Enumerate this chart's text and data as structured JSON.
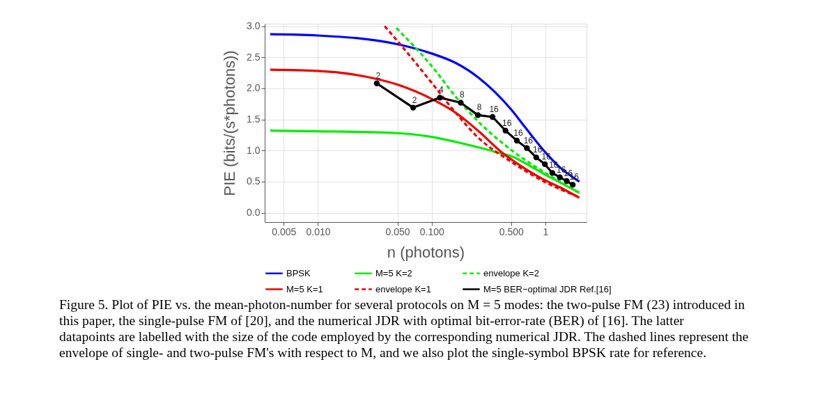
{
  "chart_data": {
    "type": "line",
    "xlabel": "n (photons)",
    "ylabel": "PIE (bits/(s*photons))",
    "log": "x",
    "xlim": [
      0.0034,
      2.3
    ],
    "ylim": [
      -0.15,
      3.04
    ],
    "xticks": [
      {
        "value": 0.005,
        "label": "0.005"
      },
      {
        "value": 0.01,
        "label": "0.010"
      },
      {
        "value": 0.05,
        "label": "0.050"
      },
      {
        "value": 0.1,
        "label": "0.100"
      },
      {
        "value": 0.5,
        "label": "0.500"
      },
      1
    ],
    "yticks": [
      {
        "value": 0,
        "label": "0.0"
      },
      {
        "value": 0.5,
        "label": "0.5"
      },
      {
        "value": 1,
        "label": "1.0"
      },
      {
        "value": 1.5,
        "label": "1.5"
      },
      {
        "value": 2,
        "label": "2.0"
      },
      {
        "value": 2.5,
        "label": "2.5"
      },
      {
        "value": 3,
        "label": "3.0"
      }
    ],
    "grid": true,
    "legend": "bottom",
    "series": [
      {
        "name": "BPSK",
        "color": "#0000ff",
        "line_style": "solid",
        "x": [
          0.0038,
          0.01,
          0.05,
          0.1,
          0.162,
          0.259,
          0.5,
          0.66,
          1,
          1.34,
          1.99
        ],
        "values": [
          2.87,
          2.85,
          2.71,
          2.56,
          2.41,
          2.17,
          1.66,
          1.38,
          0.97,
          0.73,
          0.5
        ]
      },
      {
        "name": "M=5 K=2",
        "color": "#00ee00",
        "line_style": "solid",
        "x": [
          0.0038,
          0.01,
          0.05,
          0.1,
          0.162,
          0.259,
          0.414,
          0.5,
          0.66,
          1,
          1.34,
          1.99
        ],
        "values": [
          1.32,
          1.31,
          1.28,
          1.22,
          1.14,
          1.05,
          0.95,
          0.91,
          0.8,
          0.61,
          0.49,
          0.32
        ]
      },
      {
        "name": "envelope K=2",
        "color": "#00ee00",
        "line_style": "dashed",
        "x": [
          0.0489,
          0.1,
          0.162,
          0.259,
          0.5,
          1,
          1.99
        ],
        "values": [
          2.97,
          2.36,
          1.87,
          1.46,
          1.01,
          0.64,
          0.32
        ]
      },
      {
        "name": "M=5 K=1",
        "color": "#ee0000",
        "line_style": "solid",
        "x": [
          0.0038,
          0.01,
          0.033,
          0.05,
          0.1,
          0.162,
          0.259,
          0.414,
          0.5,
          0.66,
          1,
          1.34,
          1.99
        ],
        "values": [
          2.3,
          2.28,
          2.15,
          2.06,
          1.83,
          1.61,
          1.31,
          0.97,
          0.86,
          0.71,
          0.52,
          0.41,
          0.24
        ]
      },
      {
        "name": "envelope K=1",
        "color": "#ee0000",
        "line_style": "dashed",
        "x": [
          0.0386,
          0.054,
          0.1,
          0.162,
          0.259,
          0.5,
          1,
          1.99
        ],
        "values": [
          3.0,
          2.69,
          2.09,
          1.61,
          1.2,
          0.82,
          0.49,
          0.25
        ]
      },
      {
        "name": "M=5 BER−optimal JDR Ref.[16]",
        "color": "#000000",
        "line_style": "solid",
        "marker": "circle",
        "x": [
          0.0329,
          0.0687,
          0.118,
          0.18,
          0.255,
          0.343,
          0.446,
          0.561,
          0.687,
          0.83,
          0.99,
          1.15,
          1.34,
          1.54,
          1.74
        ],
        "values": [
          2.08,
          1.69,
          1.85,
          1.77,
          1.57,
          1.54,
          1.32,
          1.16,
          1.04,
          0.89,
          0.78,
          0.64,
          0.57,
          0.51,
          0.45
        ]
      }
    ],
    "annotations": [
      {
        "text": "2",
        "x": 0.0329,
        "y": 2.08
      },
      {
        "text": "2",
        "x": 0.0687,
        "y": 1.69
      },
      {
        "text": "4",
        "x": 0.118,
        "y": 1.85
      },
      {
        "text": "8",
        "x": 0.18,
        "y": 1.77
      },
      {
        "text": "8",
        "x": 0.255,
        "y": 1.57
      },
      {
        "text": "16",
        "x": 0.343,
        "y": 1.54
      },
      {
        "text": "16",
        "x": 0.446,
        "y": 1.32
      },
      {
        "text": "16",
        "x": 0.561,
        "y": 1.16
      },
      {
        "text": "16",
        "x": 0.687,
        "y": 1.04
      },
      {
        "text": "16",
        "x": 0.83,
        "y": 0.89
      },
      {
        "text": "16",
        "x": 0.99,
        "y": 0.78
      },
      {
        "text": "16",
        "x": 1.15,
        "y": 0.64
      },
      {
        "text": "16",
        "x": 1.34,
        "y": 0.57
      },
      {
        "text": "16",
        "x": 1.54,
        "y": 0.51
      },
      {
        "text": "16",
        "x": 1.74,
        "y": 0.45
      },
      "Figure 5. Plot of PIE vs. the mean-photon-number for several protocols on M = 5 modes: the two-pulse FM (23) introduced in this paper, the single-pulse FM of [20], and the numerical JDR with optimal bit-error-rate (BER) of [16]. The latter datapoints are labelled with the size of the code employed by the corresponding numerical JDR. The dashed lines represent the envelope of single- and two-pulse FM's with respect to M, and we also plot the single-symbol BPSK rate for reference."
    ]
  }
}
